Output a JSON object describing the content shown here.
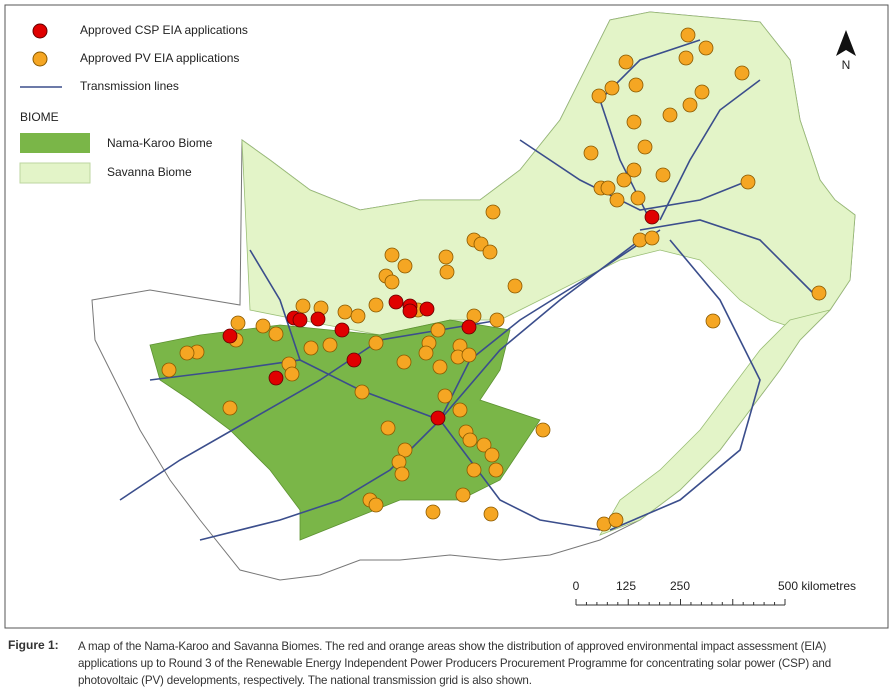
{
  "legend": {
    "items": [
      "Approved CSP EIA applications",
      "Approved PV EIA applications",
      "Transmission lines"
    ],
    "biome_title": "BIOME",
    "biomes": [
      "Nama-Karoo Biome",
      "Savanna Biome"
    ]
  },
  "north": "N",
  "scale_bar": [
    "0",
    "125",
    "250",
    "500 kilometres"
  ],
  "caption": {
    "label": "Figure 1:",
    "text": "A map of the Nama-Karoo and Savanna Biomes. The red and orange areas show the distribution of approved environmental impact assessment (EIA) applications up to Round 3 of the Renewable Energy Independent Power Producers Procurement Programme for concentrating solar power (CSP) and photovoltaic (PV) developments, respectively. The national transmission grid is also shown."
  }
}
